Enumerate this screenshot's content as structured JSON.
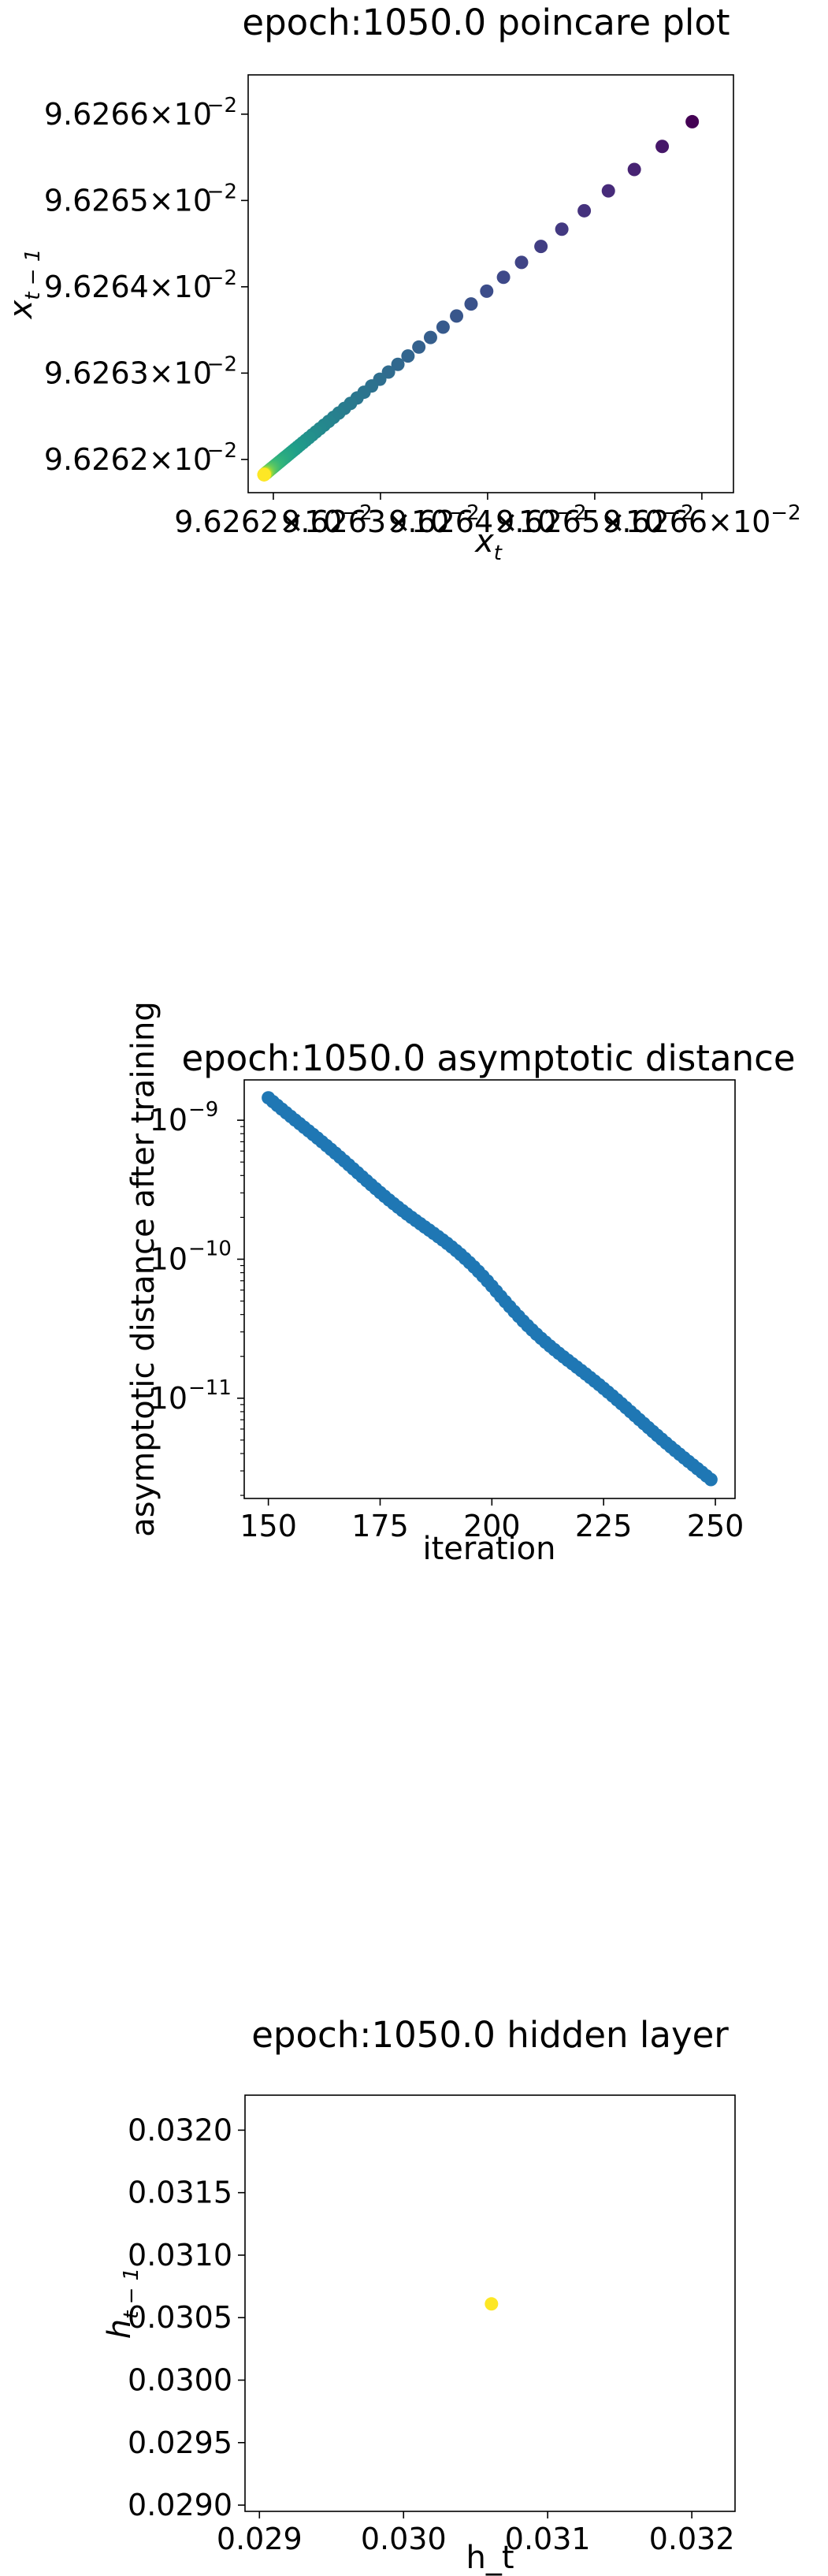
{
  "chart_data": [
    {
      "type": "scatter",
      "title": "epoch:1050.0 poincare plot",
      "xlabel_base": "x",
      "xlabel_sub": "t",
      "ylabel_base": "x",
      "ylabel_sub": "t − 1",
      "xlim": [
        0.096261765,
        0.096266295
      ],
      "ylim": [
        0.096261615,
        0.096266455
      ],
      "x_ticks": [
        {
          "value": 0.096262,
          "mantissa": "9.6262",
          "exp": "−2"
        },
        {
          "value": 0.096263,
          "mantissa": "9.6263",
          "exp": "−2"
        },
        {
          "value": 0.096264,
          "mantissa": "9.6264",
          "exp": "−2"
        },
        {
          "value": 0.096265,
          "mantissa": "9.6265",
          "exp": "−2"
        },
        {
          "value": 0.096266,
          "mantissa": "9.6266",
          "exp": "−2"
        }
      ],
      "y_ticks": [
        {
          "value": 0.096262,
          "mantissa": "9.6262",
          "exp": "−2"
        },
        {
          "value": 0.096263,
          "mantissa": "9.6263",
          "exp": "−2"
        },
        {
          "value": 0.096264,
          "mantissa": "9.6264",
          "exp": "−2"
        },
        {
          "value": 0.096265,
          "mantissa": "9.6265",
          "exp": "−2"
        },
        {
          "value": 0.096266,
          "mantissa": "9.6266",
          "exp": "−2"
        }
      ],
      "times_sign": "×10",
      "colormap": [
        "#440154",
        "#482878",
        "#3e4989",
        "#31688e",
        "#26828e",
        "#1f9e89",
        "#35b779",
        "#6ece58",
        "#b5de2b",
        "#fde725"
      ],
      "x_end": 0.09626591,
      "ratio": 0.93,
      "n_points": 100,
      "grid": false
    },
    {
      "type": "scatter",
      "title": "epoch:1050.0 asymptotic distance",
      "xlabel": "iteration",
      "ylabel": "asymptotic distance after training",
      "xlim": [
        144.6,
        254.4
      ],
      "ylim": [
        1.9e-12,
        1.95e-09
      ],
      "yscale": "log",
      "x_ticks": [
        "150",
        "175",
        "200",
        "225",
        "250"
      ],
      "y_ticks": [
        {
          "value": 1e-09,
          "base": "10",
          "exp": "−9"
        },
        {
          "value": 1e-10,
          "base": "10",
          "exp": "−10"
        },
        {
          "value": 1e-11,
          "base": "10",
          "exp": "−11"
        }
      ],
      "x_range": [
        150,
        249
      ],
      "y_start": 1.45e-09,
      "y_end": 2.6e-12,
      "color": "#1f77b4",
      "grid": false
    },
    {
      "type": "scatter",
      "title": "epoch:1050.0 hidden layer",
      "xlabel": "h_t",
      "ylabel_base": "h",
      "ylabel_sub": "t − 1",
      "xlim": [
        0.0289,
        0.0323
      ],
      "ylim": [
        0.02895,
        0.03228
      ],
      "x_ticks": [
        "0.029",
        "0.030",
        "0.031",
        "0.032"
      ],
      "y_ticks": [
        "0.0290",
        "0.0295",
        "0.0300",
        "0.0305",
        "0.0310",
        "0.0315",
        "0.0320"
      ],
      "points": [
        {
          "x": 0.03061,
          "y": 0.03061
        }
      ],
      "color": "#fde725",
      "grid": false
    }
  ]
}
